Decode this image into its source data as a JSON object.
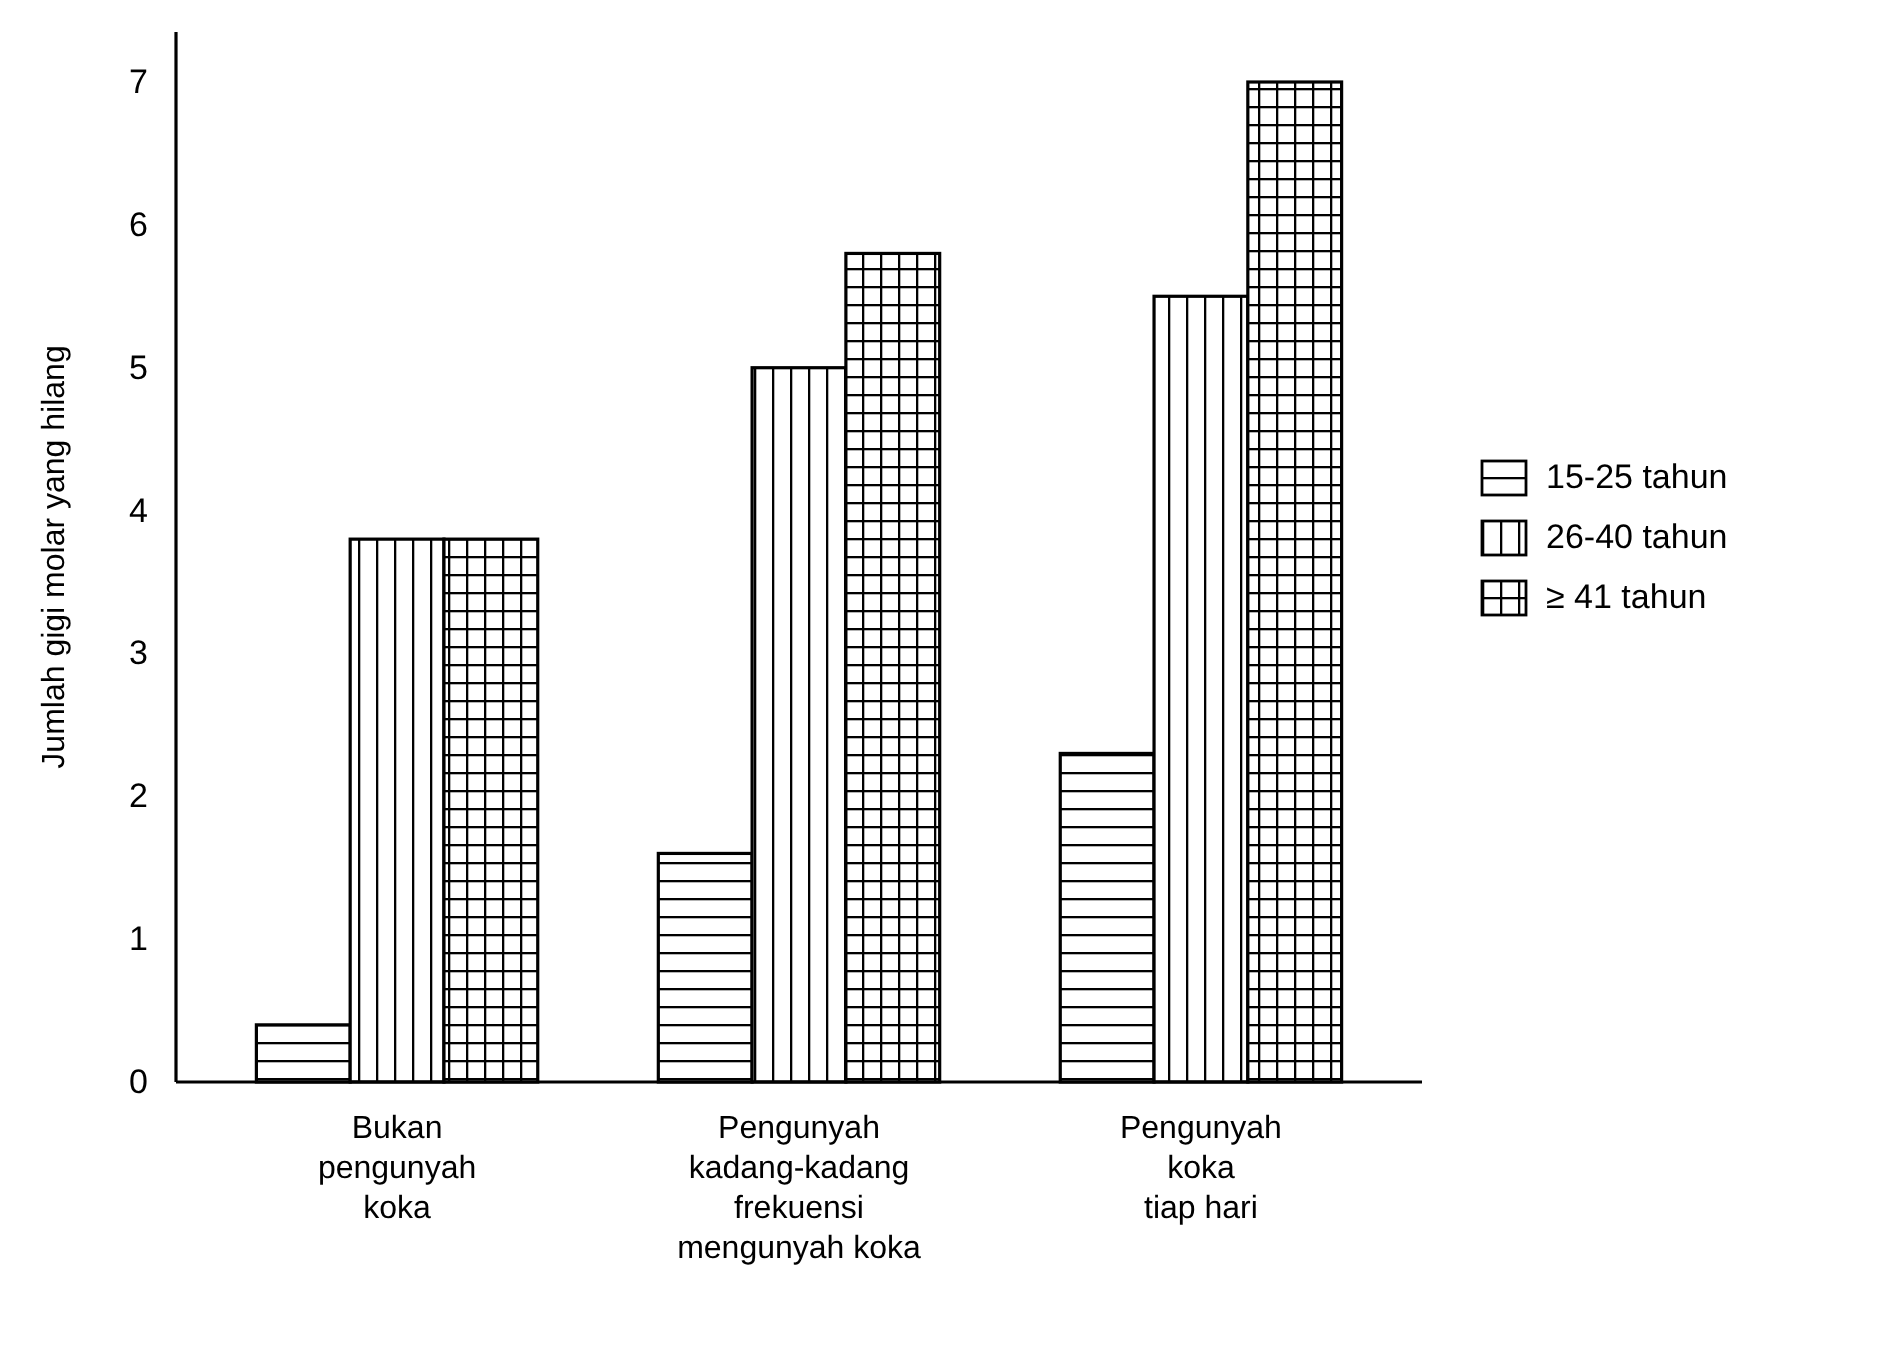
{
  "chart_data": {
    "type": "bar",
    "ylabel": "Jumlah gigi molar yang hilang",
    "categories": [
      "Bukan\npengunyah\nkoka",
      "Pengunyah\nkadang-kadang\nfrekuensi\nmengunyah koka",
      "Pengunyah\nkoka\ntiap hari"
    ],
    "series": [
      {
        "name": "15-25 tahun",
        "color": "#000000",
        "values": [
          0.4,
          1.6,
          2.3
        ]
      },
      {
        "name": "26-40 tahun",
        "color": "#000000",
        "values": [
          3.8,
          5.0,
          5.5
        ]
      },
      {
        "name": "≥ 41 tahun",
        "color": "#000000",
        "values": [
          3.8,
          5.8,
          7.0
        ]
      }
    ],
    "ylim": [
      0,
      7.35
    ],
    "yticks": [
      0,
      1,
      2,
      3,
      4,
      5,
      6,
      7
    ],
    "grid": false,
    "legend": "right"
  }
}
